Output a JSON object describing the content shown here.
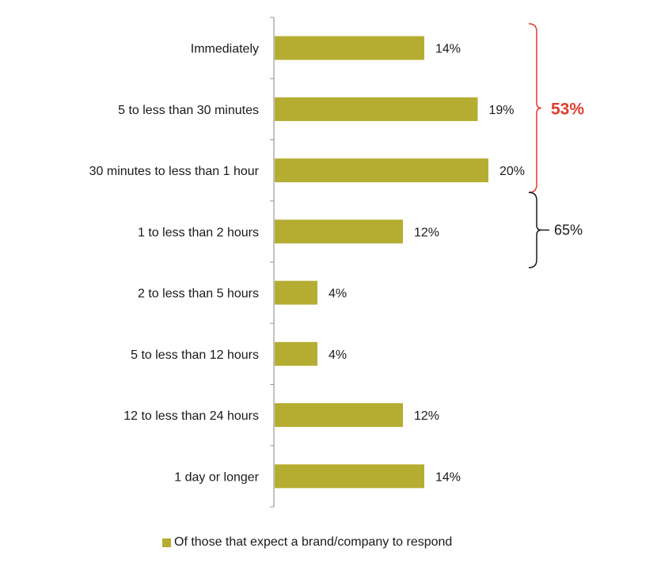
{
  "chart_data": {
    "type": "bar",
    "orientation": "horizontal",
    "categories": [
      "Immediately",
      "5 to less than 30 minutes",
      "30 minutes to less than 1 hour",
      "1  to less than 2 hours",
      "2 to less than 5 hours",
      "5 to less than 12 hours",
      "12 to less than 24 hours",
      "1 day or longer"
    ],
    "series": [
      {
        "name": "Of those that expect a brand/company to respond",
        "values": [
          14,
          19,
          20,
          12,
          4,
          4,
          12,
          14
        ]
      }
    ],
    "value_labels": [
      "14%",
      "19%",
      "20%",
      "12%",
      "4%",
      "4%",
      "12%",
      "14%"
    ],
    "xlim": [
      0,
      20
    ],
    "grid": false,
    "legend_position": "bottom",
    "annotations": [
      {
        "label": "53%",
        "spans_categories": [
          0,
          2
        ],
        "color": "#e03c2d"
      },
      {
        "label": "65%",
        "spans_categories": [
          2,
          4
        ],
        "color": "#1a1a1a"
      }
    ],
    "colors": {
      "bar": "#b5ad32",
      "axis": "#9a9a9a",
      "accent": "#e03c2d"
    }
  }
}
